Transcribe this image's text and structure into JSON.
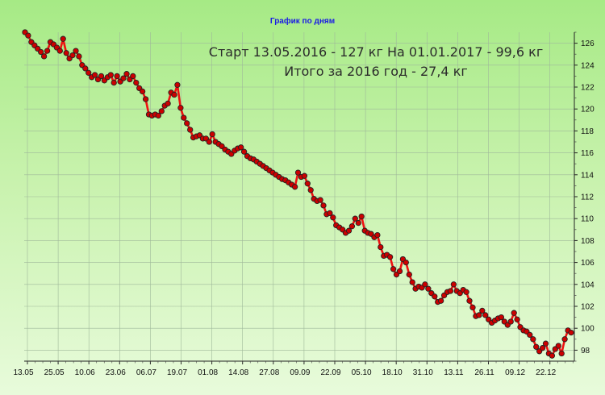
{
  "chart_data": {
    "type": "line",
    "title": "График по дням",
    "annotations": [
      "Старт 13.05.2016 - 127 кг  На 01.01.2017 - 99,6 кг",
      "Итого за 2016 год - 27,4 кг"
    ],
    "x_tick_labels": [
      "13.05",
      "25.05",
      "10.06",
      "23.06",
      "06.07",
      "19.07",
      "01.08",
      "14.08",
      "27.08",
      "09.09",
      "22.09",
      "05.10",
      "18.10",
      "31.10",
      "13.11",
      "26.11",
      "09.12",
      "22.12"
    ],
    "y_tick_labels": [
      "98",
      "100",
      "102",
      "104",
      "106",
      "108",
      "110",
      "112",
      "114",
      "116",
      "118",
      "120",
      "122",
      "124",
      "126"
    ],
    "ylim": [
      97,
      127
    ],
    "grid": true,
    "y_axis_side": "right",
    "colors": {
      "line": "#ee1111",
      "marker": "#cc0000",
      "marker_edge": "#222222",
      "title": "#1a1ae6"
    },
    "series": [
      {
        "values": [
          127.0,
          126.7,
          126.1,
          125.8,
          125.5,
          125.2,
          124.8,
          125.3,
          126.1,
          125.9,
          125.6,
          125.3,
          126.4,
          125.1,
          124.6,
          124.9,
          125.3,
          124.8,
          124.0,
          123.7,
          123.3,
          122.9,
          123.1,
          122.7,
          123.0,
          122.6,
          122.9,
          123.1,
          122.4,
          123.0,
          122.5,
          122.8,
          123.2,
          122.7,
          123.0,
          122.4,
          121.9,
          121.6,
          120.9,
          119.5,
          119.4,
          119.5,
          119.4,
          119.8,
          120.3,
          120.5,
          121.5,
          121.3,
          122.2,
          120.1,
          119.2,
          118.7,
          118.1,
          117.4,
          117.5,
          117.6,
          117.3,
          117.3,
          117.0,
          117.7,
          117.0,
          116.8,
          116.6,
          116.3,
          116.1,
          115.9,
          116.2,
          116.4,
          116.5,
          116.1,
          115.7,
          115.5,
          115.4,
          115.2,
          115.0,
          114.8,
          114.6,
          114.4,
          114.2,
          114.0,
          113.8,
          113.6,
          113.5,
          113.3,
          113.1,
          112.9,
          114.2,
          113.8,
          113.9,
          113.2,
          112.6,
          111.8,
          111.6,
          111.7,
          111.2,
          110.4,
          110.5,
          110.1,
          109.4,
          109.2,
          109.0,
          108.7,
          108.9,
          109.3,
          110.0,
          109.6,
          110.2,
          108.9,
          108.7,
          108.6,
          108.3,
          108.5,
          107.4,
          106.6,
          106.7,
          106.5,
          105.4,
          104.9,
          105.2,
          106.3,
          106.0,
          104.9,
          104.2,
          103.6,
          103.8,
          103.7,
          104.0,
          103.6,
          103.2,
          102.9,
          102.4,
          102.5,
          103.0,
          103.3,
          103.4,
          104.0,
          103.4,
          103.2,
          103.5,
          103.3,
          102.5,
          101.9,
          101.1,
          101.2,
          101.6,
          101.2,
          100.8,
          100.5,
          100.7,
          100.9,
          101.0,
          100.6,
          100.3,
          100.6,
          101.4,
          100.8,
          100.1,
          99.8,
          99.7,
          99.4,
          99.0,
          98.3,
          97.9,
          98.2,
          98.6,
          97.7,
          97.5,
          98.1,
          98.4,
          97.7,
          99.0,
          99.8,
          99.6
        ]
      }
    ]
  }
}
